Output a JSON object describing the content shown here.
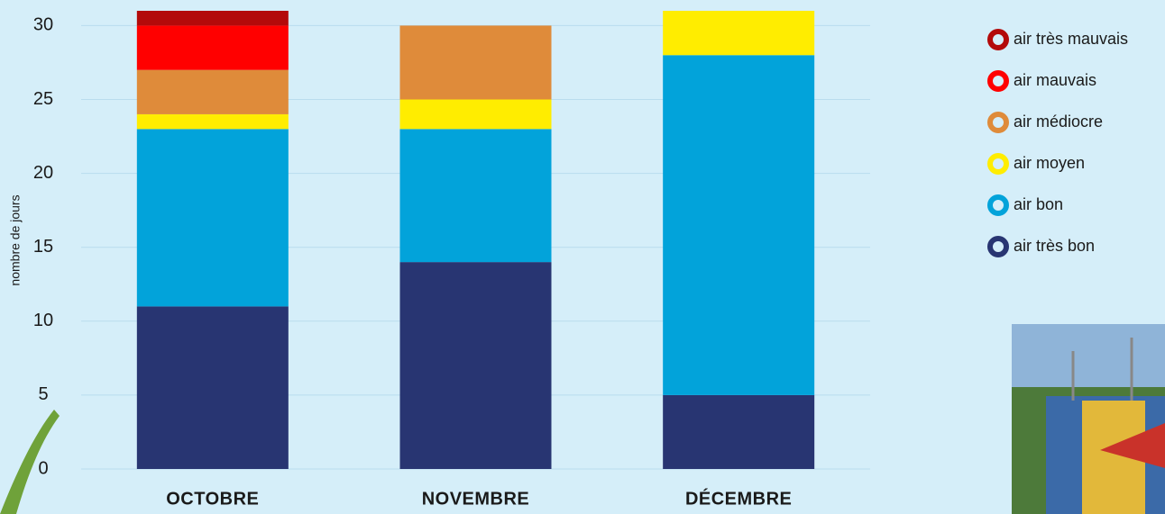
{
  "chart_data": {
    "type": "stacked_bar",
    "y_label": "nombre de jours",
    "categories": [
      "OCTOBRE",
      "NOVEMBRE",
      "DÉCEMBRE"
    ],
    "series": [
      {
        "name": "air très bon",
        "color": "#283572",
        "values": [
          11,
          14,
          5
        ]
      },
      {
        "name": "air bon",
        "color": "#02a3da",
        "values": [
          12,
          9,
          23
        ]
      },
      {
        "name": "air moyen",
        "color": "#ffed00",
        "values": [
          1,
          2,
          3
        ]
      },
      {
        "name": "air médiocre",
        "color": "#df8b3a",
        "values": [
          3,
          5,
          0
        ]
      },
      {
        "name": "air mauvais",
        "color": "#ff0000",
        "values": [
          3,
          0,
          0
        ]
      },
      {
        "name": "air très mauvais",
        "color": "#b30a0a",
        "values": [
          1,
          0,
          0
        ]
      }
    ],
    "ylim": [
      0,
      31
    ],
    "yticks": [
      0,
      5,
      10,
      15,
      20,
      25,
      30
    ],
    "grid": true,
    "legend": "right"
  }
}
